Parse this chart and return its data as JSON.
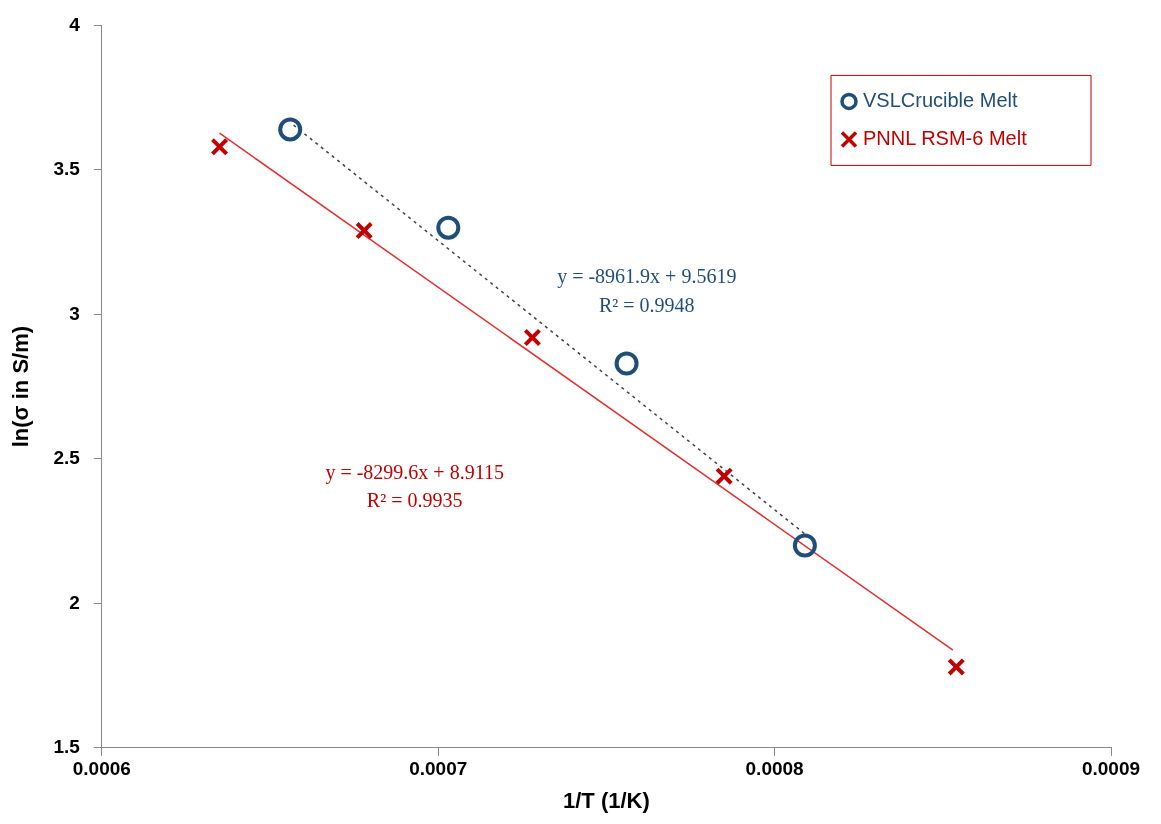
{
  "chart_data": {
    "type": "scatter",
    "xlabel": "1/T (1/K)",
    "ylabel": "ln(σ in S/m)",
    "xlim": [
      0.0006,
      0.0009
    ],
    "xticks": [
      0.0006,
      0.0007,
      0.0008,
      0.0009
    ],
    "ylim": [
      1.5,
      4
    ],
    "yticks": [
      1.5,
      2,
      2.5,
      3,
      3.5,
      4
    ],
    "grid": false,
    "legend": "top right",
    "series": [
      {
        "name": "VSLCrucible Melt",
        "color": "#1f4e79",
        "marker": "circle",
        "x": [
          0.000656,
          0.000703,
          0.000756,
          0.000809
        ],
        "values": [
          3.64,
          3.3,
          2.83,
          2.2
        ]
      },
      {
        "name": "PNNL RSM-6 Melt",
        "color": "#c00000",
        "marker": "cross",
        "x": [
          0.000635,
          0.000678,
          0.000728,
          0.000785,
          0.000854
        ],
        "values": [
          3.58,
          3.29,
          2.92,
          2.44,
          1.78
        ]
      },
      {
        "type": "line",
        "color": "#404040",
        "line_style": "dotted",
        "marker": "none",
        "x": [
          0.000657,
          0.000809
        ],
        "values": [
          3.655,
          2.24
        ]
      },
      {
        "type": "line",
        "color": "#e03030",
        "line_style": "solid",
        "marker": "none",
        "x": [
          0.000635,
          0.000853
        ],
        "values": [
          3.627,
          1.838
        ]
      }
    ],
    "annotations": [
      "y = -8961.9x + 9.5619",
      "R² = 0.9948",
      "y = -8299.6x + 8.9115",
      "R² = 0.9935"
    ]
  }
}
